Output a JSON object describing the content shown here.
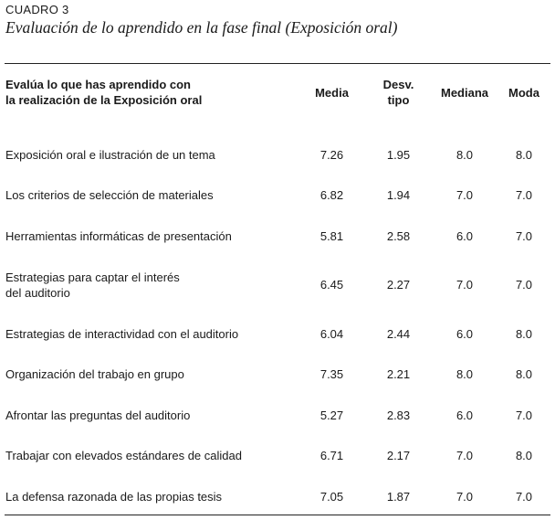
{
  "table_label": "CUADRO 3",
  "table_title": "Evaluación de lo aprendido en la fase final (Exposición oral)",
  "headers": {
    "item_line1": "Evalúa lo que has aprendido con",
    "item_line2": "la realización de la Exposición oral",
    "media": "Media",
    "desv_line1": "Desv.",
    "desv_line2": "tipo",
    "mediana": "Mediana",
    "moda": "Moda"
  },
  "rows": [
    {
      "line1": "Exposición oral e ilustración de un tema",
      "line2": "",
      "media": "7.26",
      "desv": "1.95",
      "mediana": "8.0",
      "moda": "8.0"
    },
    {
      "line1": "Los criterios de selección de materiales",
      "line2": "",
      "media": "6.82",
      "desv": "1.94",
      "mediana": "7.0",
      "moda": "7.0"
    },
    {
      "line1": "Herramientas informáticas de presentación",
      "line2": "",
      "media": "5.81",
      "desv": "2.58",
      "mediana": "6.0",
      "moda": "7.0"
    },
    {
      "line1": "Estrategias para captar el interés",
      "line2": "del auditorio",
      "media": "6.45",
      "desv": "2.27",
      "mediana": "7.0",
      "moda": "7.0"
    },
    {
      "line1": "Estrategias de interactividad con el auditorio",
      "line2": "",
      "media": "6.04",
      "desv": "2.44",
      "mediana": "6.0",
      "moda": "8.0"
    },
    {
      "line1": "Organización del trabajo en grupo",
      "line2": "",
      "media": "7.35",
      "desv": "2.21",
      "mediana": "8.0",
      "moda": "8.0"
    },
    {
      "line1": "Afrontar las preguntas del auditorio",
      "line2": "",
      "media": "5.27",
      "desv": "2.83",
      "mediana": "6.0",
      "moda": "7.0"
    },
    {
      "line1": "Trabajar con elevados estándares de calidad",
      "line2": "",
      "media": "6.71",
      "desv": "2.17",
      "mediana": "7.0",
      "moda": "8.0"
    },
    {
      "line1": "La defensa razonada de las propias tesis",
      "line2": "",
      "media": "7.05",
      "desv": "1.87",
      "mediana": "7.0",
      "moda": "7.0"
    }
  ]
}
